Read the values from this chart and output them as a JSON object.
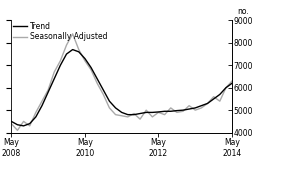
{
  "title": "",
  "ylabel_right": "no.",
  "ylim": [
    4000,
    9000
  ],
  "yticks": [
    4000,
    5000,
    6000,
    7000,
    8000,
    9000
  ],
  "xtick_labels": [
    "May\n2008",
    "May\n2010",
    "May\n2012",
    "May\n2014"
  ],
  "legend_entries": [
    "Trend",
    "Seasonally Adjusted"
  ],
  "trend_color": "#000000",
  "seasonal_color": "#aaaaaa",
  "background_color": "#ffffff",
  "trend_x": [
    0,
    2,
    4,
    6,
    8,
    10,
    12,
    14,
    16,
    18,
    20,
    22,
    24,
    26,
    28,
    30,
    32,
    34,
    36,
    38,
    40,
    42,
    44,
    46,
    48,
    50,
    52,
    54,
    56,
    58,
    60,
    62,
    64,
    66,
    68,
    70,
    72
  ],
  "trend_y": [
    4500,
    4350,
    4300,
    4400,
    4700,
    5200,
    5800,
    6400,
    7000,
    7500,
    7700,
    7600,
    7300,
    6900,
    6400,
    5900,
    5400,
    5100,
    4900,
    4800,
    4800,
    4850,
    4900,
    4900,
    4920,
    4950,
    4950,
    4980,
    5000,
    5050,
    5100,
    5200,
    5300,
    5500,
    5700,
    6000,
    6200
  ],
  "seasonal_x": [
    0,
    2,
    4,
    6,
    8,
    10,
    12,
    14,
    16,
    18,
    20,
    22,
    24,
    26,
    28,
    30,
    32,
    34,
    36,
    38,
    40,
    42,
    44,
    46,
    48,
    50,
    52,
    54,
    56,
    58,
    60,
    62,
    64,
    66,
    68,
    70,
    72
  ],
  "seasonal_y": [
    4400,
    4100,
    4500,
    4300,
    4900,
    5400,
    5900,
    6700,
    7200,
    7900,
    8400,
    7700,
    7200,
    6800,
    6200,
    5700,
    5100,
    4800,
    4750,
    4700,
    4850,
    4600,
    5000,
    4700,
    4900,
    4800,
    5100,
    4900,
    4950,
    5200,
    5000,
    5100,
    5300,
    5600,
    5400,
    6000,
    6300
  ],
  "xtick_positions": [
    0,
    24,
    48,
    72
  ],
  "xmax": 72,
  "trend_lw": 1.0,
  "seasonal_lw": 1.0,
  "tick_fontsize": 5.5,
  "legend_fontsize": 5.5
}
